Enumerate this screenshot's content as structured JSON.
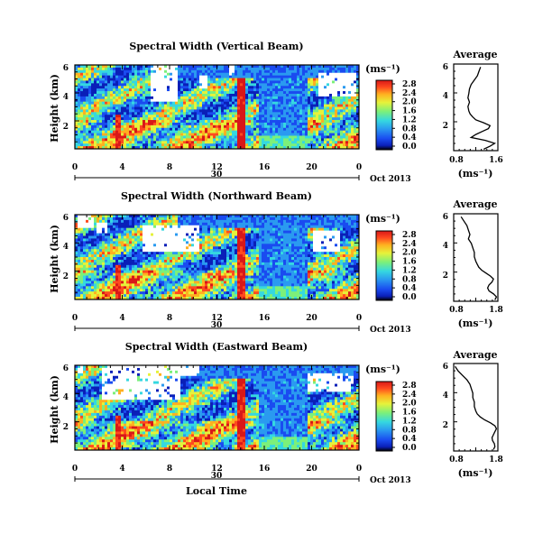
{
  "chart_data": {
    "type": "heatmap",
    "colorbar": {
      "unit": "(ms⁻¹)",
      "ticks": [
        "2.8",
        "2.4",
        "2.0",
        "1.6",
        "1.2",
        "0.8",
        "0.4",
        "0.0"
      ],
      "range": [
        0,
        2.8
      ],
      "colors": [
        "#000000",
        "#0a1fb8",
        "#1a4bf0",
        "#2a9af0",
        "#35d8e0",
        "#7cf07a",
        "#e6f23a",
        "#ffb020",
        "#ff4a1f",
        "#d81818"
      ]
    },
    "x_ticks": [
      "0",
      "4",
      "8",
      "12",
      "16",
      "20",
      "0"
    ],
    "x_range_hours": [
      0,
      24
    ],
    "date_label": "30",
    "month_label": "Oct 2013",
    "xlabel": "Local Time",
    "panels": [
      {
        "title": "Spectral Width (Vertical Beam)",
        "ylabel": "Height (km)",
        "y_ticks": [
          "6",
          "4",
          "2"
        ],
        "average": {
          "title": "Average",
          "xlabel": "(ms⁻¹)",
          "x_ticks": [
            "0.8",
            "1.6"
          ],
          "y_ticks": [
            "6",
            "4",
            "2"
          ],
          "xlim": [
            0.4,
            1.8
          ],
          "ylim": [
            0.3,
            6.2
          ],
          "profile_speed": [
            1.25,
            1.2,
            1.15,
            1.05,
            0.95,
            0.9,
            0.88,
            0.85,
            0.9,
            0.85,
            0.88,
            0.92,
            1.0,
            1.1,
            1.35,
            1.55,
            1.5,
            1.3,
            1.1,
            0.95,
            1.4,
            1.7,
            1.55,
            1.35
          ],
          "profile_height": [
            6.0,
            5.7,
            5.4,
            5.1,
            4.8,
            4.5,
            4.2,
            3.9,
            3.6,
            3.3,
            3.0,
            2.8,
            2.6,
            2.4,
            2.2,
            2.0,
            1.8,
            1.6,
            1.4,
            1.2,
            1.0,
            0.8,
            0.6,
            0.4
          ]
        }
      },
      {
        "title": "Spectral Width (Northward Beam)",
        "ylabel": "Height (km)",
        "y_ticks": [
          "6",
          "4",
          "2"
        ],
        "average": {
          "title": "Average",
          "xlabel": "(ms⁻¹)",
          "x_ticks": [
            "0.8",
            "1.8"
          ],
          "y_ticks": [
            "6",
            "4",
            "2"
          ],
          "xlim": [
            0.4,
            1.9
          ],
          "ylim": [
            0.3,
            6.2
          ],
          "profile_speed": [
            0.65,
            0.75,
            0.85,
            0.9,
            0.95,
            0.9,
            1.0,
            1.05,
            1.1,
            1.1,
            1.15,
            1.2,
            1.25,
            1.35,
            1.5,
            1.65,
            1.75,
            1.7,
            1.6,
            1.55,
            1.6,
            1.75,
            1.85,
            1.8
          ],
          "profile_height": [
            6.0,
            5.7,
            5.4,
            5.1,
            4.8,
            4.5,
            4.2,
            3.9,
            3.6,
            3.3,
            3.0,
            2.8,
            2.6,
            2.4,
            2.2,
            2.0,
            1.8,
            1.6,
            1.4,
            1.2,
            1.0,
            0.8,
            0.6,
            0.4
          ]
        }
      },
      {
        "title": "Spectral Width (Eastward Beam)",
        "ylabel": "Height (km)",
        "y_ticks": [
          "6",
          "4",
          "2"
        ],
        "average": {
          "title": "Average",
          "xlabel": "(ms⁻¹)",
          "x_ticks": [
            "0.8",
            "1.8"
          ],
          "y_ticks": [
            "6",
            "4",
            "2"
          ],
          "xlim": [
            0.4,
            1.9
          ],
          "ylim": [
            0.3,
            6.2
          ],
          "profile_speed": [
            0.45,
            0.55,
            0.7,
            0.85,
            0.95,
            1.0,
            1.05,
            1.05,
            1.1,
            1.1,
            1.15,
            1.2,
            1.3,
            1.45,
            1.65,
            1.8,
            1.85,
            1.8,
            1.75,
            1.7,
            1.72,
            1.78,
            1.8,
            1.75
          ],
          "profile_height": [
            6.0,
            5.7,
            5.4,
            5.1,
            4.8,
            4.5,
            4.2,
            3.9,
            3.6,
            3.3,
            3.0,
            2.8,
            2.6,
            2.4,
            2.2,
            2.0,
            1.8,
            1.6,
            1.4,
            1.2,
            1.0,
            0.8,
            0.6,
            0.4
          ]
        }
      }
    ]
  }
}
